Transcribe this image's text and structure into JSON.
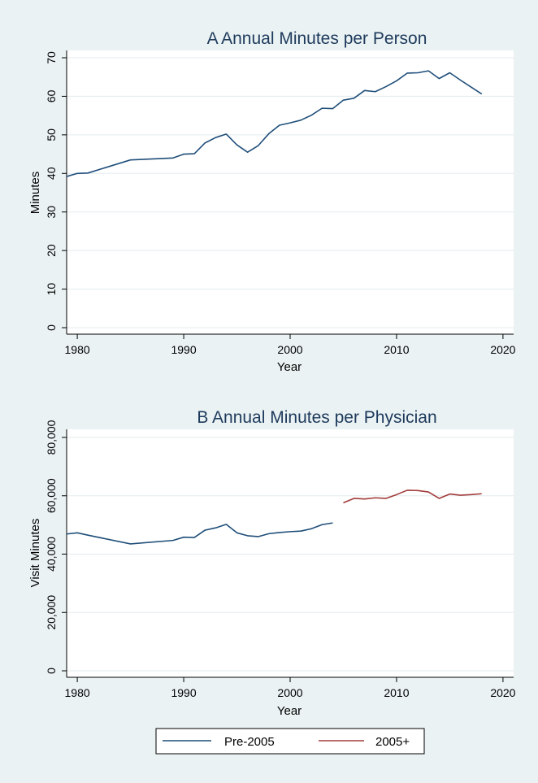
{
  "chart_data": [
    {
      "type": "line",
      "title": "A  Annual Minutes per Person",
      "xlabel": "Year",
      "ylabel": "Minutes",
      "xlim": [
        1979,
        2021
      ],
      "ylim": [
        0,
        70
      ],
      "xticks": [
        1980,
        1990,
        2000,
        2010,
        2020
      ],
      "yticks": [
        0,
        10,
        20,
        30,
        40,
        50,
        60,
        70
      ],
      "grid": true,
      "series": [
        {
          "name": "",
          "color": "#1f4e79",
          "points": [
            [
              1979,
              39.2
            ],
            [
              1980,
              40.0
            ],
            [
              1981,
              40.1
            ],
            [
              1985,
              43.5
            ],
            [
              1989,
              44.0
            ],
            [
              1990,
              45.0
            ],
            [
              1991,
              45.1
            ],
            [
              1992,
              47.9
            ],
            [
              1993,
              49.3
            ],
            [
              1994,
              50.2
            ],
            [
              1995,
              47.4
            ],
            [
              1996,
              45.5
            ],
            [
              1997,
              47.2
            ],
            [
              1998,
              50.3
            ],
            [
              1999,
              52.5
            ],
            [
              2000,
              53.1
            ],
            [
              2001,
              53.8
            ],
            [
              2002,
              55.1
            ],
            [
              2003,
              56.9
            ],
            [
              2004,
              56.8
            ],
            [
              2005,
              59.0
            ],
            [
              2006,
              59.5
            ],
            [
              2007,
              61.5
            ],
            [
              2008,
              61.2
            ],
            [
              2009,
              62.5
            ],
            [
              2010,
              64.0
            ],
            [
              2011,
              66.0
            ],
            [
              2012,
              66.1
            ],
            [
              2013,
              66.6
            ],
            [
              2014,
              64.6
            ],
            [
              2015,
              66.1
            ],
            [
              2016,
              64.2
            ],
            [
              2017,
              62.4
            ],
            [
              2018,
              60.6
            ]
          ]
        }
      ]
    },
    {
      "type": "line",
      "title": "B  Annual Minutes per Physician",
      "xlabel": "Year",
      "ylabel": "Visit Minutes",
      "xlim": [
        1979,
        2021
      ],
      "ylim": [
        0,
        80000
      ],
      "xticks": [
        1980,
        1990,
        2000,
        2010,
        2020
      ],
      "yticks": [
        0,
        20000,
        40000,
        60000,
        80000
      ],
      "ytick_labels": [
        "0",
        "20,000",
        "40,000",
        "60,000",
        "80,000"
      ],
      "grid": true,
      "legend_position": "bottom",
      "series": [
        {
          "name": "Pre-2005",
          "color": "#1f4e79",
          "points": [
            [
              1979,
              46900
            ],
            [
              1980,
              47300
            ],
            [
              1981,
              46500
            ],
            [
              1985,
              43500
            ],
            [
              1989,
              44700
            ],
            [
              1990,
              45800
            ],
            [
              1991,
              45700
            ],
            [
              1992,
              48200
            ],
            [
              1993,
              49000
            ],
            [
              1994,
              50200
            ],
            [
              1995,
              47300
            ],
            [
              1996,
              46300
            ],
            [
              1997,
              46000
            ],
            [
              1998,
              47000
            ],
            [
              1999,
              47400
            ],
            [
              2000,
              47700
            ],
            [
              2001,
              47900
            ],
            [
              2002,
              48700
            ],
            [
              2003,
              50100
            ],
            [
              2004,
              50700
            ]
          ]
        },
        {
          "name": "2005+",
          "color": "#a33b3b",
          "points": [
            [
              2005,
              57600
            ],
            [
              2006,
              59100
            ],
            [
              2007,
              58900
            ],
            [
              2008,
              59300
            ],
            [
              2009,
              59100
            ],
            [
              2010,
              60400
            ],
            [
              2011,
              61900
            ],
            [
              2012,
              61800
            ],
            [
              2013,
              61300
            ],
            [
              2014,
              59100
            ],
            [
              2015,
              60600
            ],
            [
              2016,
              60200
            ],
            [
              2017,
              60400
            ],
            [
              2018,
              60700
            ]
          ]
        }
      ]
    }
  ]
}
